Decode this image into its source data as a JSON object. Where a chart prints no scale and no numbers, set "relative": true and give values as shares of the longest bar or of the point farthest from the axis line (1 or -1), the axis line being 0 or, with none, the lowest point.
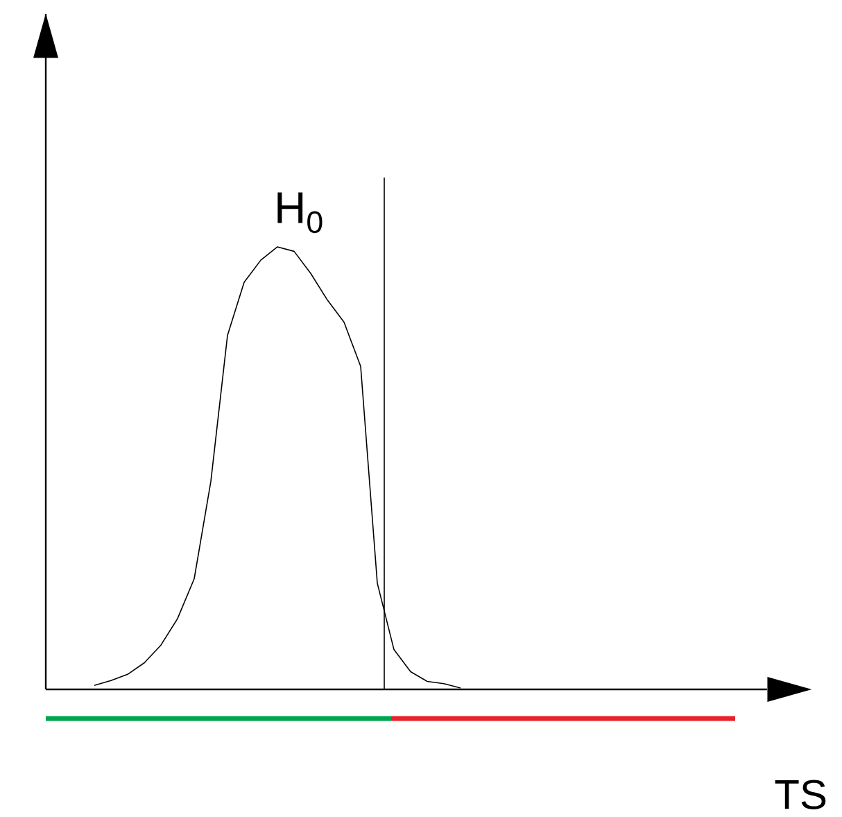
{
  "chart_data": {
    "type": "line",
    "relative": true,
    "annotations": [
      "H$_{0}$",
      "TS"
    ],
    "categories": [
      null,
      null,
      null,
      null,
      null,
      null,
      null,
      null,
      null,
      null,
      null,
      null,
      null,
      null,
      null,
      null,
      null,
      null,
      null,
      null,
      null,
      null,
      null
    ],
    "series": [
      {
        "color": "#000000",
        "values": [
          0.009,
          0.02,
          0.034,
          0.06,
          0.1,
          0.16,
          0.25,
          0.47,
          0.8,
          0.92,
          0.97,
          1.0,
          0.99,
          0.94,
          0.88,
          0.83,
          0.73,
          0.24,
          0.09,
          0.04,
          0.018,
          0.013,
          0.003
        ]
      }
    ]
  }
}
